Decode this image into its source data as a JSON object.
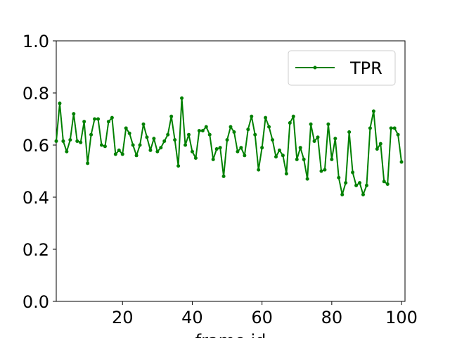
{
  "chart_data": {
    "type": "line",
    "title": "",
    "xlabel": "frame id",
    "ylabel": "",
    "xlim": [
      1,
      101
    ],
    "ylim": [
      0.0,
      1.0
    ],
    "x_ticks": [
      20,
      40,
      60,
      80,
      100
    ],
    "x_tick_labels": [
      "20",
      "40",
      "60",
      "80",
      "100"
    ],
    "y_ticks": [
      0.0,
      0.2,
      0.4,
      0.6,
      0.8,
      1.0
    ],
    "y_tick_labels": [
      "0.0",
      "0.2",
      "0.4",
      "0.6",
      "0.8",
      "1.0"
    ],
    "grid": false,
    "legend": {
      "position": "top-right"
    },
    "series": [
      {
        "name": "TPR",
        "color": "#008000",
        "x": [
          1,
          2,
          3,
          4,
          5,
          6,
          7,
          8,
          9,
          10,
          11,
          12,
          13,
          14,
          15,
          16,
          17,
          18,
          19,
          20,
          21,
          22,
          23,
          24,
          25,
          26,
          27,
          28,
          29,
          30,
          31,
          32,
          33,
          34,
          35,
          36,
          37,
          38,
          39,
          40,
          41,
          42,
          43,
          44,
          45,
          46,
          47,
          48,
          49,
          50,
          51,
          52,
          53,
          54,
          55,
          56,
          57,
          58,
          59,
          60,
          61,
          62,
          63,
          64,
          65,
          66,
          67,
          68,
          69,
          70,
          71,
          72,
          73,
          74,
          75,
          76,
          77,
          78,
          79,
          80,
          81,
          82,
          83,
          84,
          85,
          86,
          87,
          88,
          89,
          90,
          91,
          92,
          93,
          94,
          95,
          96,
          97,
          98,
          99,
          100
        ],
        "values": [
          0.615,
          0.76,
          0.615,
          0.575,
          0.62,
          0.72,
          0.615,
          0.61,
          0.69,
          0.53,
          0.64,
          0.7,
          0.7,
          0.6,
          0.595,
          0.69,
          0.705,
          0.565,
          0.58,
          0.565,
          0.665,
          0.645,
          0.6,
          0.56,
          0.6,
          0.68,
          0.63,
          0.58,
          0.625,
          0.575,
          0.59,
          0.615,
          0.64,
          0.71,
          0.62,
          0.52,
          0.78,
          0.6,
          0.64,
          0.575,
          0.55,
          0.655,
          0.655,
          0.67,
          0.64,
          0.545,
          0.585,
          0.59,
          0.48,
          0.62,
          0.67,
          0.65,
          0.575,
          0.59,
          0.56,
          0.66,
          0.71,
          0.64,
          0.505,
          0.59,
          0.705,
          0.67,
          0.62,
          0.555,
          0.58,
          0.56,
          0.49,
          0.685,
          0.71,
          0.545,
          0.59,
          0.545,
          0.47,
          0.68,
          0.615,
          0.63,
          0.5,
          0.505,
          0.68,
          0.545,
          0.625,
          0.475,
          0.41,
          0.455,
          0.65,
          0.495,
          0.445,
          0.455,
          0.41,
          0.445,
          0.665,
          0.73,
          0.585,
          0.605,
          0.46,
          0.45,
          0.665,
          0.665,
          0.64,
          0.535
        ]
      }
    ]
  }
}
